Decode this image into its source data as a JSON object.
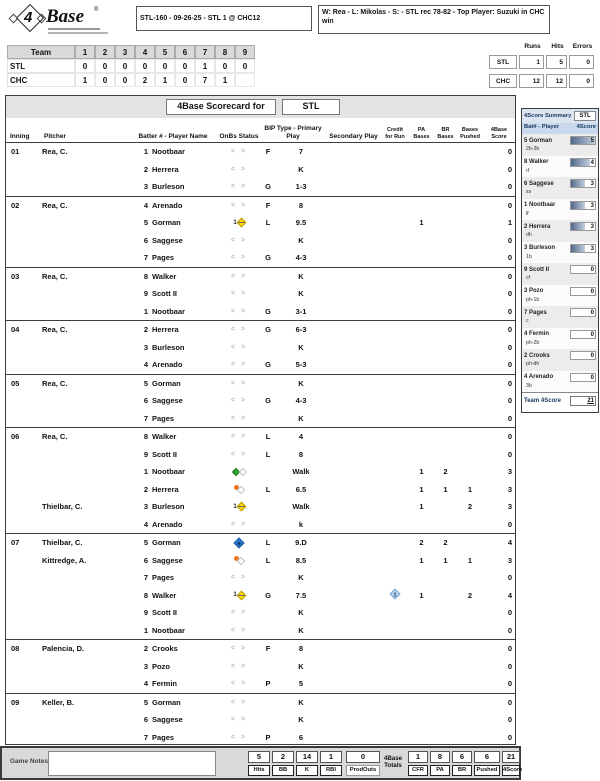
{
  "header": {
    "logo_num": "4",
    "logo_name": "Base",
    "logo_reg": "®",
    "game_box": "STL-160 - 09-26-25 - STL 1 @ CHC12",
    "result_box": "W: Rea - L: Mikolas - S:  - STL rec 78-82 - Top Player: Suzuki in CHC win"
  },
  "linescore": {
    "team_header": "Team",
    "innings": [
      "1",
      "2",
      "3",
      "4",
      "5",
      "6",
      "7",
      "8",
      "9"
    ],
    "teams": [
      {
        "name": "STL",
        "scores": [
          "0",
          "0",
          "0",
          "0",
          "0",
          "0",
          "1",
          "0",
          "0"
        ]
      },
      {
        "name": "CHC",
        "scores": [
          "1",
          "0",
          "0",
          "2",
          "1",
          "0",
          "7",
          "1",
          ""
        ]
      }
    ],
    "rhe_headers": [
      "Runs",
      "Hits",
      "Errors"
    ],
    "rhe": [
      {
        "team": "STL",
        "runs": "1",
        "hits": "5",
        "errors": "0"
      },
      {
        "team": "CHC",
        "runs": "12",
        "hits": "12",
        "errors": "0"
      }
    ]
  },
  "title": {
    "label": "4Base Scorecard for",
    "team": "STL"
  },
  "columns": {
    "inning": "Inning",
    "pitcher": "Pitcher",
    "batter": "Batter # - Player Name",
    "onbs": "OnBs Status",
    "bip": "BIP Type - Primary Play",
    "secondary": "Secondary Play",
    "cfr_l1": "Credit",
    "cfr_l2": "for Run",
    "pa_l1": "PA",
    "pa_l2": "Bases",
    "br_l1": "BR",
    "br_l2": "Bases",
    "pushed_l1": "Bases",
    "pushed_l2": "Pushed",
    "score_l1": "4Base",
    "score_l2": "Score"
  },
  "scorecard": {
    "innings": [
      {
        "num": "01",
        "rows": [
          {
            "pitcher": "Rea, C.",
            "bat": "1",
            "name": "Nootbaar",
            "onbs": "gray",
            "bip": "F",
            "primary": "7",
            "secondary": "",
            "cfr": "",
            "pa": "",
            "br": "",
            "pushed": "",
            "score": "0"
          },
          {
            "pitcher": "",
            "bat": "2",
            "name": "Herrera",
            "onbs": "gray",
            "bip": "",
            "primary": "K",
            "secondary": "",
            "cfr": "",
            "pa": "",
            "br": "",
            "pushed": "",
            "score": "0"
          },
          {
            "pitcher": "",
            "bat": "3",
            "name": "Burleson",
            "onbs": "gray",
            "bip": "G",
            "primary": "1-3",
            "secondary": "",
            "cfr": "",
            "pa": "",
            "br": "",
            "pushed": "",
            "score": "0"
          }
        ]
      },
      {
        "num": "02",
        "rows": [
          {
            "pitcher": "Rea, C.",
            "bat": "4",
            "name": "Arenado",
            "onbs": "gray",
            "bip": "F",
            "primary": "8",
            "secondary": "",
            "cfr": "",
            "pa": "",
            "br": "",
            "pushed": "",
            "score": "0"
          },
          {
            "pitcher": "",
            "bat": "5",
            "name": "Gorman",
            "onbs": "yellow",
            "bip": "L",
            "primary": "9.5",
            "secondary": "",
            "cfr": "",
            "pa": "1",
            "br": "",
            "pushed": "",
            "score": "1"
          },
          {
            "pitcher": "",
            "bat": "6",
            "name": "Saggese",
            "onbs": "gray",
            "bip": "",
            "primary": "K",
            "secondary": "",
            "cfr": "",
            "pa": "",
            "br": "",
            "pushed": "",
            "score": "0"
          },
          {
            "pitcher": "",
            "bat": "7",
            "name": "Pages",
            "onbs": "gray",
            "bip": "G",
            "primary": "4-3",
            "secondary": "",
            "cfr": "",
            "pa": "",
            "br": "",
            "pushed": "",
            "score": "0"
          }
        ]
      },
      {
        "num": "03",
        "rows": [
          {
            "pitcher": "Rea, C.",
            "bat": "8",
            "name": "Walker",
            "onbs": "gray",
            "bip": "",
            "primary": "K",
            "secondary": "",
            "cfr": "",
            "pa": "",
            "br": "",
            "pushed": "",
            "score": "0"
          },
          {
            "pitcher": "",
            "bat": "9",
            "name": "Scott II",
            "onbs": "gray",
            "bip": "",
            "primary": "K",
            "secondary": "",
            "cfr": "",
            "pa": "",
            "br": "",
            "pushed": "",
            "score": "0"
          },
          {
            "pitcher": "",
            "bat": "1",
            "name": "Nootbaar",
            "onbs": "gray",
            "bip": "G",
            "primary": "3-1",
            "secondary": "",
            "cfr": "",
            "pa": "",
            "br": "",
            "pushed": "",
            "score": "0"
          }
        ]
      },
      {
        "num": "04",
        "rows": [
          {
            "pitcher": "Rea, C.",
            "bat": "2",
            "name": "Herrera",
            "onbs": "gray",
            "bip": "G",
            "primary": "6-3",
            "secondary": "",
            "cfr": "",
            "pa": "",
            "br": "",
            "pushed": "",
            "score": "0"
          },
          {
            "pitcher": "",
            "bat": "3",
            "name": "Burleson",
            "onbs": "gray",
            "bip": "",
            "primary": "K",
            "secondary": "",
            "cfr": "",
            "pa": "",
            "br": "",
            "pushed": "",
            "score": "0"
          },
          {
            "pitcher": "",
            "bat": "4",
            "name": "Arenado",
            "onbs": "gray",
            "bip": "G",
            "primary": "5-3",
            "secondary": "",
            "cfr": "",
            "pa": "",
            "br": "",
            "pushed": "",
            "score": "0"
          }
        ]
      },
      {
        "num": "05",
        "rows": [
          {
            "pitcher": "Rea, C.",
            "bat": "5",
            "name": "Gorman",
            "onbs": "gray",
            "bip": "",
            "primary": "K",
            "secondary": "",
            "cfr": "",
            "pa": "",
            "br": "",
            "pushed": "",
            "score": "0"
          },
          {
            "pitcher": "",
            "bat": "6",
            "name": "Saggese",
            "onbs": "gray",
            "bip": "G",
            "primary": "4-3",
            "secondary": "",
            "cfr": "",
            "pa": "",
            "br": "",
            "pushed": "",
            "score": "0"
          },
          {
            "pitcher": "",
            "bat": "7",
            "name": "Pages",
            "onbs": "gray",
            "bip": "",
            "primary": "K",
            "secondary": "",
            "cfr": "",
            "pa": "",
            "br": "",
            "pushed": "",
            "score": "0"
          }
        ]
      },
      {
        "num": "06",
        "rows": [
          {
            "pitcher": "Rea, C.",
            "bat": "8",
            "name": "Walker",
            "onbs": "gray",
            "bip": "L",
            "primary": "4",
            "secondary": "",
            "cfr": "",
            "pa": "",
            "br": "",
            "pushed": "",
            "score": "0"
          },
          {
            "pitcher": "",
            "bat": "9",
            "name": "Scott II",
            "onbs": "gray",
            "bip": "L",
            "primary": "8",
            "secondary": "",
            "cfr": "",
            "pa": "",
            "br": "",
            "pushed": "",
            "score": "0"
          },
          {
            "pitcher": "",
            "bat": "1",
            "name": "Nootbaar",
            "onbs": "green",
            "bip": "",
            "primary": "Walk",
            "secondary": "",
            "cfr": "",
            "pa": "1",
            "br": "2",
            "pushed": "",
            "score": "3"
          },
          {
            "pitcher": "",
            "bat": "2",
            "name": "Herrera",
            "onbs": "orange",
            "bip": "L",
            "primary": "6.5",
            "secondary": "",
            "cfr": "",
            "pa": "1",
            "br": "1",
            "pushed": "1",
            "score": "3"
          },
          {
            "pitcher": "Thielbar, C.",
            "bat": "3",
            "name": "Burleson",
            "onbs": "yellow",
            "bip": "",
            "primary": "Walk",
            "secondary": "",
            "cfr": "",
            "pa": "1",
            "br": "",
            "pushed": "2",
            "score": "3"
          },
          {
            "pitcher": "",
            "bat": "4",
            "name": "Arenado",
            "onbs": "gray",
            "bip": "",
            "primary": "k",
            "secondary": "",
            "cfr": "",
            "pa": "",
            "br": "",
            "pushed": "",
            "score": "0"
          }
        ]
      },
      {
        "num": "07",
        "rows": [
          {
            "pitcher": "Thielbar, C.",
            "bat": "5",
            "name": "Gorman",
            "onbs": "blue",
            "bip": "L",
            "primary": "9.D",
            "secondary": "",
            "cfr": "",
            "pa": "2",
            "br": "2",
            "pushed": "",
            "score": "4"
          },
          {
            "pitcher": "Kittredge, A.",
            "bat": "6",
            "name": "Saggese",
            "onbs": "orange",
            "bip": "L",
            "primary": "8.5",
            "secondary": "",
            "cfr": "",
            "pa": "1",
            "br": "1",
            "pushed": "1",
            "score": "3"
          },
          {
            "pitcher": "",
            "bat": "7",
            "name": "Pages",
            "onbs": "gray",
            "bip": "",
            "primary": "K",
            "secondary": "",
            "cfr": "",
            "pa": "",
            "br": "",
            "pushed": "",
            "score": "0"
          },
          {
            "pitcher": "",
            "bat": "8",
            "name": "Walker",
            "onbs": "yellow",
            "bip": "G",
            "primary": "7.5",
            "secondary": "",
            "cfr": "1",
            "pa": "1",
            "br": "",
            "pushed": "2",
            "score": "4"
          },
          {
            "pitcher": "",
            "bat": "9",
            "name": "Scott II",
            "onbs": "gray",
            "bip": "",
            "primary": "K",
            "secondary": "",
            "cfr": "",
            "pa": "",
            "br": "",
            "pushed": "",
            "score": "0"
          },
          {
            "pitcher": "",
            "bat": "1",
            "name": "Nootbaar",
            "onbs": "gray",
            "bip": "",
            "primary": "K",
            "secondary": "",
            "cfr": "",
            "pa": "",
            "br": "",
            "pushed": "",
            "score": "0"
          }
        ]
      },
      {
        "num": "08",
        "rows": [
          {
            "pitcher": "Palencia, D.",
            "bat": "2",
            "name": "Crooks",
            "onbs": "gray",
            "bip": "F",
            "primary": "8",
            "secondary": "",
            "cfr": "",
            "pa": "",
            "br": "",
            "pushed": "",
            "score": "0"
          },
          {
            "pitcher": "",
            "bat": "3",
            "name": "Pozo",
            "onbs": "gray",
            "bip": "",
            "primary": "K",
            "secondary": "",
            "cfr": "",
            "pa": "",
            "br": "",
            "pushed": "",
            "score": "0"
          },
          {
            "pitcher": "",
            "bat": "4",
            "name": "Fermin",
            "onbs": "gray",
            "bip": "P",
            "primary": "5",
            "secondary": "",
            "cfr": "",
            "pa": "",
            "br": "",
            "pushed": "",
            "score": "0"
          }
        ]
      },
      {
        "num": "09",
        "rows": [
          {
            "pitcher": "Keller, B.",
            "bat": "5",
            "name": "Gorman",
            "onbs": "gray",
            "bip": "",
            "primary": "K",
            "secondary": "",
            "cfr": "",
            "pa": "",
            "br": "",
            "pushed": "",
            "score": "0"
          },
          {
            "pitcher": "",
            "bat": "6",
            "name": "Saggese",
            "onbs": "gray",
            "bip": "",
            "primary": "K",
            "secondary": "",
            "cfr": "",
            "pa": "",
            "br": "",
            "pushed": "",
            "score": "0"
          },
          {
            "pitcher": "",
            "bat": "7",
            "name": "Pages",
            "onbs": "gray",
            "bip": "P",
            "primary": "6",
            "secondary": "",
            "cfr": "",
            "pa": "",
            "br": "",
            "pushed": "",
            "score": "0"
          }
        ]
      }
    ]
  },
  "sidebar": {
    "title": "4Score Summary",
    "team": "STL",
    "col_player": "Bat# - Player",
    "col_score": "4Score",
    "players": [
      {
        "num": "5",
        "name": "Gorman",
        "pos": "2b-3b",
        "score": 5
      },
      {
        "num": "8",
        "name": "Walker",
        "pos": "rf",
        "score": 4
      },
      {
        "num": "6",
        "name": "Saggese",
        "pos": "ss",
        "score": 3
      },
      {
        "num": "1",
        "name": "Nootbaar",
        "pos": "lf",
        "score": 3
      },
      {
        "num": "2",
        "name": "Herrera",
        "pos": "dh",
        "score": 3
      },
      {
        "num": "3",
        "name": "Burleson",
        "pos": "1b",
        "score": 3
      },
      {
        "num": "9",
        "name": "Scott II",
        "pos": "cf",
        "score": 0
      },
      {
        "num": "3",
        "name": "Pozo",
        "pos": "ph-1b",
        "score": 0
      },
      {
        "num": "7",
        "name": "Pages",
        "pos": "c",
        "score": 0
      },
      {
        "num": "4",
        "name": "Fermin",
        "pos": "ph-2b",
        "score": 0
      },
      {
        "num": "2",
        "name": "Crooks",
        "pos": "ph-dh",
        "score": 0
      },
      {
        "num": "4",
        "name": "Arenado",
        "pos": "3b",
        "score": 0
      }
    ],
    "total_label": "Team 4Score",
    "total_value": "21"
  },
  "footer": {
    "notes_label": "Game Notes",
    "notes_value": "",
    "stats_left": [
      {
        "value": "5",
        "label": "Hits"
      },
      {
        "value": "2",
        "label": "BB"
      },
      {
        "value": "14",
        "label": "K"
      },
      {
        "value": "1",
        "label": "RBI"
      }
    ],
    "prodouts": {
      "value": "0",
      "label": "ProdOuts"
    },
    "totals_l1": "4Base",
    "totals_l2": "Totals",
    "stats_right": [
      {
        "value": "1",
        "label": "CFR"
      },
      {
        "value": "8",
        "label": "PA"
      },
      {
        "value": "6",
        "label": "BR"
      },
      {
        "value": "6",
        "label": "Pushed"
      },
      {
        "value": "21",
        "label": "4Score"
      }
    ]
  },
  "colors": {
    "accent_yellow": "#ffd900",
    "accent_green": "#33a02c",
    "accent_orange": "#e8731c",
    "accent_blue": "#2d7dd2",
    "cfr_blue": "#b7d2ec",
    "bar_gradient_dark": "#51688a",
    "bar_gradient_light": "#c3cfdf",
    "sidebar_header_bg": "#dbe5f1",
    "navy_text": "#17365d"
  }
}
